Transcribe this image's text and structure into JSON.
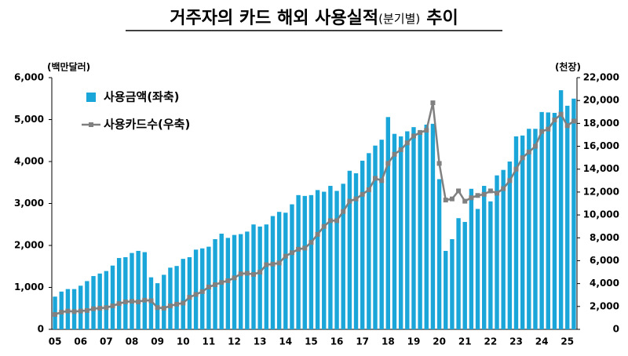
{
  "chart_data": {
    "type": "combo",
    "title": "거주자의 카드 해외 사용실적",
    "title_note": "(분기별)",
    "title_end": "추이",
    "y_label": "(백만달러)",
    "y2_label": "(천장)",
    "categories": [
      "05",
      null,
      null,
      null,
      "06",
      null,
      null,
      null,
      "07",
      null,
      null,
      null,
      "08",
      null,
      null,
      null,
      "09",
      null,
      null,
      null,
      "10",
      null,
      null,
      null,
      "11",
      null,
      null,
      null,
      "12",
      null,
      null,
      null,
      "13",
      null,
      null,
      null,
      "14",
      null,
      null,
      null,
      "15",
      null,
      null,
      null,
      "16",
      null,
      null,
      null,
      "17",
      null,
      null,
      null,
      "18",
      null,
      null,
      null,
      "19",
      null,
      null,
      null,
      "20",
      null,
      null,
      null,
      "21",
      null,
      null,
      null,
      "22",
      null,
      null,
      null,
      "23",
      null,
      null,
      null,
      "24",
      null,
      null,
      null,
      "25",
      null
    ],
    "series": [
      {
        "name": "사용금액(좌축)",
        "type": "bar",
        "color": "#1aa6d9",
        "values": [
          780,
          900,
          960,
          960,
          1040,
          1150,
          1270,
          1330,
          1390,
          1520,
          1700,
          1720,
          1820,
          1870,
          1840,
          1240,
          1100,
          1300,
          1470,
          1510,
          1680,
          1720,
          1900,
          1930,
          1970,
          2150,
          2280,
          2180,
          2250,
          2270,
          2330,
          2500,
          2450,
          2500,
          2700,
          2800,
          2780,
          2980,
          3200,
          3180,
          3200,
          3320,
          3280,
          3420,
          3300,
          3470,
          3780,
          3720,
          4020,
          4200,
          4380,
          4520,
          5060,
          4660,
          4600,
          4720,
          4820,
          4750,
          4880,
          4900,
          3580,
          1870,
          2150,
          2650,
          2560,
          3350,
          2870,
          3420,
          3050,
          3670,
          3800,
          4000,
          4600,
          4620,
          4780,
          4780,
          5180,
          5170,
          5160,
          5700,
          5330,
          5500
        ]
      },
      {
        "name": "사용카드수(우축)",
        "type": "line",
        "axis": "y2",
        "color": "#808080",
        "values": [
          1300,
          1500,
          1600,
          1550,
          1600,
          1650,
          1800,
          1850,
          1900,
          2050,
          2250,
          2400,
          2450,
          2400,
          2550,
          2500,
          1900,
          1850,
          2050,
          2200,
          2300,
          2800,
          3050,
          3300,
          3700,
          3900,
          4100,
          4250,
          4500,
          4850,
          4900,
          4800,
          5000,
          5650,
          5700,
          5800,
          6400,
          6700,
          7000,
          7100,
          7600,
          8300,
          9000,
          9500,
          9500,
          10300,
          11200,
          11400,
          11800,
          12200,
          13200,
          13000,
          14500,
          15300,
          15700,
          16300,
          16900,
          17200,
          17400,
          19800,
          14500,
          11300,
          11400,
          12100,
          11200,
          11500,
          11700,
          11800,
          12100,
          11900,
          12300,
          13000,
          14000,
          15000,
          15500,
          16000,
          17300,
          17500,
          18300,
          18800,
          17800,
          18200
        ]
      }
    ],
    "ylim": [
      0,
      6000
    ],
    "yticks": [
      0,
      {
        "value": 1000,
        "label": "1,000"
      },
      {
        "value": 2000,
        "label": "2,000"
      },
      {
        "value": 3000,
        "label": "3,000"
      },
      {
        "value": 4000,
        "label": "4,000"
      },
      {
        "value": 5000,
        "label": "5,000"
      },
      {
        "value": 6000,
        "label": "6,000"
      }
    ],
    "y2lim": [
      0,
      22000
    ],
    "y2ticks": [
      0,
      {
        "value": 2000,
        "label": "2,000"
      },
      {
        "value": 4000,
        "label": "4,000"
      },
      {
        "value": 6000,
        "label": "6,000"
      },
      {
        "value": 8000,
        "label": "8,000"
      },
      {
        "value": 10000,
        "label": "10,000"
      },
      {
        "value": 12000,
        "label": "12,000"
      },
      {
        "value": 14000,
        "label": "14,000"
      },
      {
        "value": 16000,
        "label": "16,000"
      },
      {
        "value": 18000,
        "label": "18,000"
      },
      {
        "value": 20000,
        "label": "20,000"
      },
      {
        "value": 22000,
        "label": "22,000"
      }
    ],
    "legend": "top-left"
  }
}
